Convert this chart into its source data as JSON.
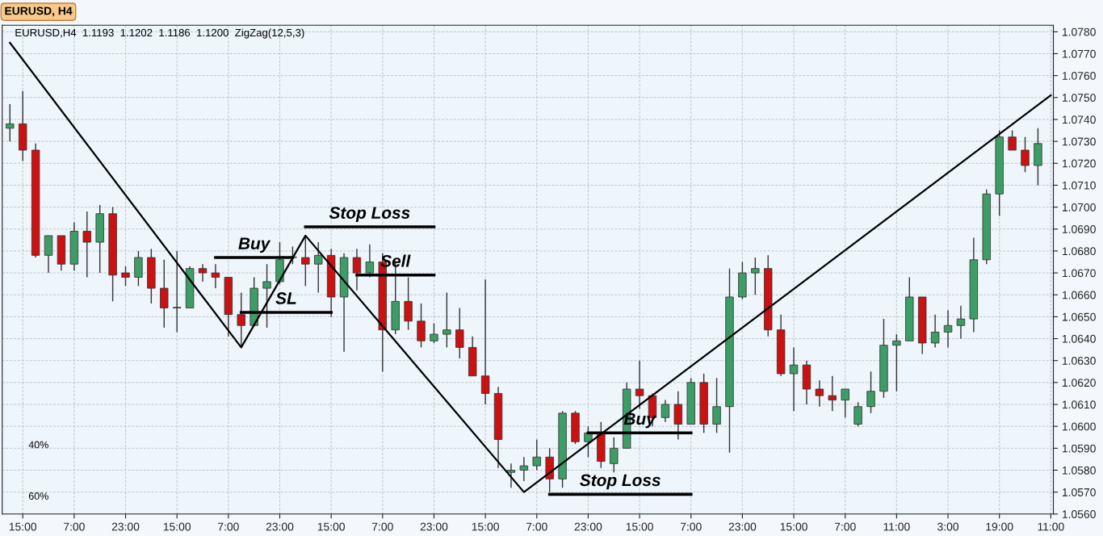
{
  "chart_data": {
    "type": "candlestick",
    "title": "EURUSD, H4",
    "subtitle": "EURUSD,H4  1.1193  1.1202  1.1186  1.1200  ZigZag(12,5,3)",
    "categories": [
      null,
      "15:00",
      null,
      null,
      null,
      "7:00",
      null,
      null,
      null,
      "23:00",
      null,
      null,
      null,
      "15:00",
      null,
      null,
      null,
      "7:00",
      null,
      null,
      null,
      "23:00",
      null,
      null,
      null,
      "15:00",
      null,
      null,
      null,
      "7:00",
      null,
      null,
      null,
      "23:00",
      null,
      null,
      null,
      "15:00",
      null,
      null,
      null,
      "7:00",
      null,
      null,
      null,
      "23:00",
      null,
      null,
      null,
      "15:00",
      null,
      null,
      null,
      "7:00",
      null,
      null,
      null,
      "23:00",
      null,
      null,
      null,
      "15:00",
      null,
      null,
      null,
      "7:00",
      null,
      null,
      null,
      "11:00",
      null,
      null,
      null,
      "3:00",
      null,
      null,
      null,
      "19:00",
      null,
      null,
      null,
      "11:00"
    ],
    "ohlc": [
      [
        1.0736,
        1.0747,
        1.073,
        1.0738
      ],
      [
        1.0738,
        1.0753,
        1.0721,
        1.0726
      ],
      [
        1.0726,
        1.0729,
        1.0677,
        1.0678
      ],
      [
        1.0678,
        1.0687,
        1.067,
        1.0687
      ],
      [
        1.0687,
        1.0687,
        1.0671,
        1.0674
      ],
      [
        1.0674,
        1.0693,
        1.0671,
        1.0689
      ],
      [
        1.0689,
        1.0698,
        1.0668,
        1.0684
      ],
      [
        1.0684,
        1.0701,
        1.067,
        1.0697
      ],
      [
        1.0697,
        1.07,
        1.0657,
        1.0669
      ],
      [
        1.067,
        1.0673,
        1.0664,
        1.0668
      ],
      [
        1.0668,
        1.068,
        1.0664,
        1.0677
      ],
      [
        1.0677,
        1.0681,
        1.0656,
        1.0663
      ],
      [
        1.0663,
        1.0676,
        1.0645,
        1.0654
      ],
      [
        1.0654,
        1.068,
        1.0643,
        1.0654
      ],
      [
        1.0654,
        1.0673,
        1.0654,
        1.0672
      ],
      [
        1.0672,
        1.0674,
        1.0666,
        1.067
      ],
      [
        1.067,
        1.0674,
        1.0663,
        1.0668
      ],
      [
        1.0668,
        1.0668,
        1.0641,
        1.0651
      ],
      [
        1.0651,
        1.0661,
        1.0636,
        1.0646
      ],
      [
        1.0646,
        1.0668,
        1.0646,
        1.0663
      ],
      [
        1.0663,
        1.0674,
        1.0645,
        1.0666
      ],
      [
        1.0666,
        1.0684,
        1.0665,
        1.0676
      ],
      [
        1.0677,
        1.0682,
        1.0674,
        1.0677
      ],
      [
        1.0677,
        1.0687,
        1.0664,
        1.0674
      ],
      [
        1.0674,
        1.0684,
        1.0661,
        1.0678
      ],
      [
        1.0678,
        1.0681,
        1.065,
        1.0659
      ],
      [
        1.0659,
        1.0679,
        1.0634,
        1.0677
      ],
      [
        1.0677,
        1.0681,
        1.0662,
        1.067
      ],
      [
        1.067,
        1.0683,
        1.0668,
        1.0675
      ],
      [
        1.0675,
        1.0679,
        1.0625,
        1.0644
      ],
      [
        1.0644,
        1.0675,
        1.0642,
        1.0657
      ],
      [
        1.0657,
        1.0668,
        1.0644,
        1.0648
      ],
      [
        1.0648,
        1.0656,
        1.0636,
        1.0639
      ],
      [
        1.0639,
        1.0647,
        1.0638,
        1.0642
      ],
      [
        1.0642,
        1.0661,
        1.0636,
        1.0644
      ],
      [
        1.0644,
        1.0654,
        1.0631,
        1.0636
      ],
      [
        1.0636,
        1.0641,
        1.0623,
        1.0623
      ],
      [
        1.0623,
        1.0667,
        1.061,
        1.0615
      ],
      [
        1.0615,
        1.0618,
        1.0581,
        1.0594
      ],
      [
        1.0579,
        1.0583,
        1.0572,
        1.058
      ],
      [
        1.058,
        1.0586,
        1.0575,
        1.0582
      ],
      [
        1.0582,
        1.0594,
        1.058,
        1.0586
      ],
      [
        1.0586,
        1.059,
        1.057,
        1.0576
      ],
      [
        1.0576,
        1.0607,
        1.0572,
        1.0606
      ],
      [
        1.0606,
        1.0607,
        1.0592,
        1.0593
      ],
      [
        1.0593,
        1.06,
        1.0586,
        1.0597
      ],
      [
        1.0597,
        1.0602,
        1.0581,
        1.0584
      ],
      [
        1.0583,
        1.0595,
        1.0579,
        1.059
      ],
      [
        1.059,
        1.062,
        1.059,
        1.0617
      ],
      [
        1.0617,
        1.063,
        1.0608,
        1.0614
      ],
      [
        1.0614,
        1.0615,
        1.06,
        1.0604
      ],
      [
        1.0604,
        1.0612,
        1.0602,
        1.061
      ],
      [
        1.061,
        1.0616,
        1.0594,
        1.0601
      ],
      [
        1.0601,
        1.0622,
        1.0601,
        1.062
      ],
      [
        1.062,
        1.0624,
        1.0597,
        1.0601
      ],
      [
        1.0601,
        1.0622,
        1.0597,
        1.0609
      ],
      [
        1.0609,
        1.0672,
        1.0588,
        1.0659
      ],
      [
        1.0659,
        1.0675,
        1.0658,
        1.067
      ],
      [
        1.067,
        1.0677,
        1.066,
        1.0672
      ],
      [
        1.0672,
        1.0678,
        1.0641,
        1.0644
      ],
      [
        1.0644,
        1.0651,
        1.0623,
        1.0624
      ],
      [
        1.0624,
        1.0636,
        1.0607,
        1.0628
      ],
      [
        1.0628,
        1.063,
        1.061,
        1.0617
      ],
      [
        1.0617,
        1.0621,
        1.0609,
        1.0614
      ],
      [
        1.0614,
        1.0623,
        1.0607,
        1.0612
      ],
      [
        1.0612,
        1.0617,
        1.0604,
        1.0617
      ],
      [
        1.0601,
        1.0611,
        1.06,
        1.0609
      ],
      [
        1.0609,
        1.0625,
        1.0606,
        1.0616
      ],
      [
        1.0616,
        1.0649,
        1.0613,
        1.0637
      ],
      [
        1.0637,
        1.0642,
        1.0616,
        1.0639
      ],
      [
        1.0639,
        1.0668,
        1.0639,
        1.0659
      ],
      [
        1.0659,
        1.0659,
        1.0633,
        1.0638
      ],
      [
        1.0638,
        1.0651,
        1.0636,
        1.0643
      ],
      [
        1.0643,
        1.0653,
        1.0636,
        1.0646
      ],
      [
        1.0646,
        1.0655,
        1.064,
        1.0649
      ],
      [
        1.0649,
        1.0686,
        1.0643,
        1.0676
      ],
      [
        1.0676,
        1.0708,
        1.0674,
        1.0706
      ],
      [
        1.0706,
        1.0735,
        1.0696,
        1.0732
      ],
      [
        1.0732,
        1.0735,
        1.0726,
        1.0726
      ],
      [
        1.0726,
        1.0732,
        1.0716,
        1.0719
      ],
      [
        1.0719,
        1.0736,
        1.071,
        1.0729
      ],
      null
    ],
    "colors": [
      "#3c9e66",
      "#cc1111",
      "#cc1111",
      "#3c9e66",
      "#cc1111",
      "#3c9e66",
      "#cc1111",
      "#3c9e66",
      "#cc1111",
      "#cc1111",
      "#3c9e66",
      "#cc1111",
      "#cc1111",
      "#3c9e66",
      "#3c9e66",
      "#cc1111",
      "#cc1111",
      "#cc1111",
      "#cc1111",
      "#3c9e66",
      "#3c9e66",
      "#3c9e66",
      "#3c9e66",
      "#cc1111",
      "#3c9e66",
      "#cc1111",
      "#3c9e66",
      "#cc1111",
      "#3c9e66",
      "#cc1111",
      "#3c9e66",
      "#cc1111",
      "#cc1111",
      "#3c9e66",
      "#3c9e66",
      "#cc1111",
      "#cc1111",
      "#cc1111",
      "#cc1111",
      "#3c9e66",
      "#3c9e66",
      "#3c9e66",
      "#cc1111",
      "#3c9e66",
      "#cc1111",
      "#3c9e66",
      "#cc1111",
      "#3c9e66",
      "#3c9e66",
      "#cc1111",
      "#cc1111",
      "#3c9e66",
      "#cc1111",
      "#3c9e66",
      "#cc1111",
      "#3c9e66",
      "#3c9e66",
      "#3c9e66",
      "#3c9e66",
      "#cc1111",
      "#cc1111",
      "#3c9e66",
      "#cc1111",
      "#cc1111",
      "#cc1111",
      "#3c9e66",
      "#3c9e66",
      "#3c9e66",
      "#3c9e66",
      "#3c9e66",
      "#3c9e66",
      "#cc1111",
      "#3c9e66",
      "#3c9e66",
      "#3c9e66",
      "#3c9e66",
      "#3c9e66",
      "#3c9e66",
      "#cc1111",
      "#cc1111",
      "#3c9e66",
      null
    ],
    "series": [
      {
        "type": "line",
        "color": "#000000",
        "values": [
          1.0775,
          null,
          null,
          null,
          null,
          null,
          null,
          null,
          null,
          null,
          null,
          null,
          null,
          null,
          null,
          null,
          null,
          null,
          1.0636,
          null,
          null,
          null,
          null,
          1.0687,
          null,
          null,
          null,
          null,
          null,
          null,
          null,
          null,
          null,
          null,
          null,
          null,
          null,
          null,
          null,
          null,
          1.057,
          null,
          null,
          null,
          null,
          null,
          null,
          null,
          null,
          null,
          null,
          null,
          null,
          null,
          null,
          null,
          null,
          null,
          null,
          null,
          null,
          null,
          null,
          null,
          null,
          null,
          null,
          null,
          null,
          null,
          null,
          null,
          null,
          null,
          null,
          null,
          null,
          null,
          null,
          null,
          null,
          1.0751
        ]
      },
      {
        "type": "line",
        "name": "Buy",
        "color": "#000000",
        "values": [
          null,
          null,
          null,
          null,
          null,
          null,
          null,
          null,
          null,
          null,
          null,
          null,
          null,
          null,
          null,
          null,
          1.0677,
          null,
          null,
          null,
          null,
          null,
          1.0677,
          null,
          null,
          null,
          null,
          null,
          null,
          null,
          null,
          null,
          null,
          null,
          null,
          null,
          null,
          null,
          null,
          null,
          null,
          null,
          null,
          null,
          null,
          null,
          null,
          null,
          null,
          null,
          null,
          null,
          null,
          null,
          null,
          null,
          null,
          null,
          null,
          null,
          null,
          null,
          null,
          null,
          null,
          null,
          null,
          null,
          null,
          null,
          null,
          null,
          null,
          null,
          null,
          null,
          null,
          null,
          null,
          null,
          null,
          null
        ]
      },
      {
        "type": "line",
        "name": "SL",
        "color": "#000000",
        "values": [
          null,
          null,
          null,
          null,
          null,
          null,
          null,
          null,
          null,
          null,
          null,
          null,
          null,
          null,
          null,
          null,
          null,
          null,
          1.0652,
          null,
          null,
          null,
          null,
          null,
          null,
          1.0652,
          null,
          null,
          null,
          null,
          null,
          null,
          null,
          null,
          null,
          null,
          null,
          null,
          null,
          null,
          null,
          null,
          null,
          null,
          null,
          null,
          null,
          null,
          null,
          null,
          null,
          null,
          null,
          null,
          null,
          null,
          null,
          null,
          null,
          null,
          null,
          null,
          null,
          null,
          null,
          null,
          null,
          null,
          null,
          null,
          null,
          null,
          null,
          null,
          null,
          null,
          null,
          null,
          null,
          null,
          null,
          null
        ]
      },
      {
        "type": "line",
        "name": "Stop Loss",
        "color": "#000000",
        "values": [
          null,
          null,
          null,
          null,
          null,
          null,
          null,
          null,
          null,
          null,
          null,
          null,
          null,
          null,
          null,
          null,
          null,
          null,
          null,
          null,
          null,
          null,
          null,
          1.0691,
          null,
          null,
          null,
          null,
          null,
          null,
          null,
          null,
          null,
          1.0691,
          null,
          null,
          null,
          null,
          null,
          null,
          null,
          null,
          null,
          null,
          null,
          null,
          null,
          null,
          null,
          null,
          null,
          null,
          null,
          null,
          null,
          null,
          null,
          null,
          null,
          null,
          null,
          null,
          null,
          null,
          null,
          null,
          null,
          null,
          null,
          null,
          null,
          null,
          null,
          null,
          null,
          null,
          null,
          null,
          null,
          null,
          null,
          null
        ]
      },
      {
        "type": "line",
        "name": "Sell",
        "color": "#000000",
        "values": [
          null,
          null,
          null,
          null,
          null,
          null,
          null,
          null,
          null,
          null,
          null,
          null,
          null,
          null,
          null,
          null,
          null,
          null,
          null,
          null,
          null,
          null,
          null,
          null,
          null,
          null,
          null,
          1.0669,
          null,
          null,
          null,
          null,
          null,
          1.0669,
          null,
          null,
          null,
          null,
          null,
          null,
          null,
          null,
          null,
          null,
          null,
          null,
          null,
          null,
          null,
          null,
          null,
          null,
          null,
          null,
          null,
          null,
          null,
          null,
          null,
          null,
          null,
          null,
          null,
          null,
          null,
          null,
          null,
          null,
          null,
          null,
          null,
          null,
          null,
          null,
          null,
          null,
          null,
          null,
          null,
          null,
          null,
          null
        ]
      },
      {
        "type": "line",
        "name": "Buy",
        "color": "#000000",
        "values": [
          null,
          null,
          null,
          null,
          null,
          null,
          null,
          null,
          null,
          null,
          null,
          null,
          null,
          null,
          null,
          null,
          null,
          null,
          null,
          null,
          null,
          null,
          null,
          null,
          null,
          null,
          null,
          null,
          null,
          null,
          null,
          null,
          null,
          null,
          null,
          null,
          null,
          null,
          null,
          null,
          null,
          null,
          null,
          null,
          null,
          1.0597,
          null,
          null,
          null,
          null,
          null,
          null,
          null,
          1.0597,
          null,
          null,
          null,
          null,
          null,
          null,
          null,
          null,
          null,
          null,
          null,
          null,
          null,
          null,
          null,
          null,
          null,
          null,
          null,
          null,
          null,
          null,
          null,
          null,
          null,
          null,
          null,
          null
        ]
      },
      {
        "type": "line",
        "name": "Stop Loss",
        "color": "#000000",
        "values": [
          null,
          null,
          null,
          null,
          null,
          null,
          null,
          null,
          null,
          null,
          null,
          null,
          null,
          null,
          null,
          null,
          null,
          null,
          null,
          null,
          null,
          null,
          null,
          null,
          null,
          null,
          null,
          null,
          null,
          null,
          null,
          null,
          null,
          null,
          null,
          null,
          null,
          null,
          null,
          null,
          null,
          null,
          1.0569,
          null,
          null,
          null,
          null,
          null,
          null,
          null,
          null,
          null,
          null,
          1.0569,
          null,
          null,
          null,
          null,
          null,
          null,
          null,
          null,
          null,
          null,
          null,
          null,
          null,
          null,
          null,
          null,
          null,
          null,
          null,
          null,
          null,
          null,
          null,
          null,
          null,
          null,
          null,
          null
        ]
      }
    ],
    "annotations": [
      "40%",
      "60%"
    ],
    "ylim": [
      1.056,
      1.0783
    ],
    "yticks": [
      {
        "value": 1.056,
        "label": "1.0560"
      },
      {
        "value": 1.057,
        "label": "1.0570"
      },
      {
        "value": 1.058,
        "label": "1.0580"
      },
      {
        "value": 1.059,
        "label": "1.0590"
      },
      {
        "value": 1.06,
        "label": "1.0600"
      },
      {
        "value": 1.061,
        "label": "1.0610"
      },
      {
        "value": 1.062,
        "label": "1.0620"
      },
      {
        "value": 1.063,
        "label": "1.0630"
      },
      {
        "value": 1.064,
        "label": "1.0640"
      },
      {
        "value": 1.065,
        "label": "1.0650"
      },
      {
        "value": 1.066,
        "label": "1.0660"
      },
      {
        "value": 1.067,
        "label": "1.0670"
      },
      {
        "value": 1.068,
        "label": "1.0680"
      },
      {
        "value": 1.069,
        "label": "1.0690"
      },
      {
        "value": 1.07,
        "label": "1.0700"
      },
      {
        "value": 1.071,
        "label": "1.0710"
      },
      {
        "value": 1.072,
        "label": "1.0720"
      },
      {
        "value": 1.073,
        "label": "1.0730"
      },
      {
        "value": 1.074,
        "label": "1.0740"
      },
      {
        "value": 1.075,
        "label": "1.0750"
      },
      {
        "value": 1.076,
        "label": "1.0760"
      },
      {
        "value": 1.077,
        "label": "1.0770"
      },
      {
        "value": 1.078,
        "label": "1.0780"
      }
    ],
    "grid": true,
    "legend": false
  }
}
